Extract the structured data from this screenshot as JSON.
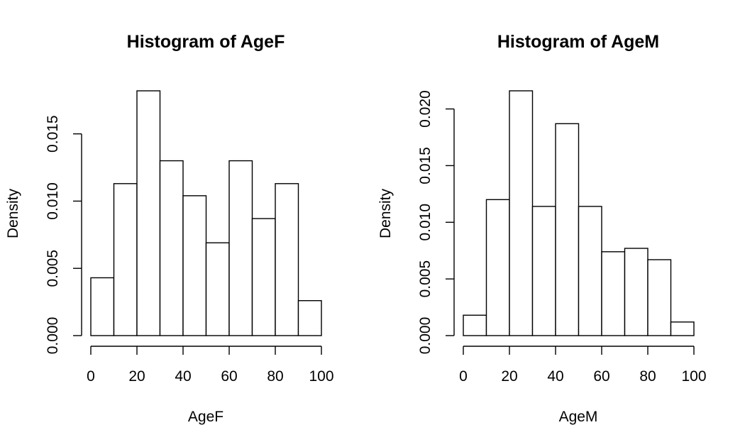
{
  "chart_data": [
    {
      "type": "bar",
      "title": "Histogram of AgeF",
      "xlabel": "AgeF",
      "ylabel": "Density",
      "bins": [
        [
          0,
          10
        ],
        [
          10,
          20
        ],
        [
          20,
          30
        ],
        [
          30,
          40
        ],
        [
          40,
          50
        ],
        [
          50,
          60
        ],
        [
          60,
          70
        ],
        [
          70,
          80
        ],
        [
          80,
          90
        ],
        [
          90,
          100
        ]
      ],
      "values": [
        0.0043,
        0.0113,
        0.0182,
        0.013,
        0.0104,
        0.0069,
        0.013,
        0.0087,
        0.0113,
        0.0026
      ],
      "xlim": [
        0,
        100
      ],
      "ylim": [
        0,
        0.0182
      ],
      "x_ticks": [
        0,
        20,
        40,
        60,
        80,
        100
      ],
      "x_tick_labels": [
        "0",
        "20",
        "40",
        "60",
        "80",
        "100"
      ],
      "y_ticks": [
        0,
        0.005,
        0.01,
        0.015
      ],
      "y_tick_labels": [
        "0.000",
        "0.005",
        "0.010",
        "0.015"
      ],
      "grid": false
    },
    {
      "type": "bar",
      "title": "Histogram of AgeM",
      "xlabel": "AgeM",
      "ylabel": "Density",
      "bins": [
        [
          0,
          10
        ],
        [
          10,
          20
        ],
        [
          20,
          30
        ],
        [
          30,
          40
        ],
        [
          40,
          50
        ],
        [
          50,
          60
        ],
        [
          60,
          70
        ],
        [
          70,
          80
        ],
        [
          80,
          90
        ],
        [
          90,
          100
        ]
      ],
      "values": [
        0.0018,
        0.012,
        0.0216,
        0.0114,
        0.0187,
        0.0114,
        0.0074,
        0.0077,
        0.0067,
        0.0012
      ],
      "xlim": [
        0,
        100
      ],
      "ylim": [
        0,
        0.0216
      ],
      "x_ticks": [
        0,
        20,
        40,
        60,
        80,
        100
      ],
      "x_tick_labels": [
        "0",
        "20",
        "40",
        "60",
        "80",
        "100"
      ],
      "y_ticks": [
        0,
        0.005,
        0.01,
        0.015,
        0.02
      ],
      "y_tick_labels": [
        "0.000",
        "0.005",
        "0.010",
        "0.015",
        "0.020"
      ],
      "grid": false
    }
  ]
}
